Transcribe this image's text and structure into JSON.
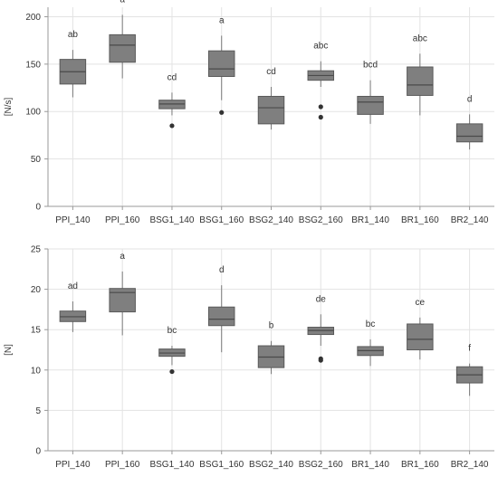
{
  "colors": {
    "box_fill": "#7f7f7f",
    "box_stroke": "#5a5a5a",
    "median": "#4a4a4a",
    "whisker": "#7a7a7a",
    "outlier": "#333333",
    "grid": "#e3e3e3",
    "axis": "#9a9a9a",
    "text": "#333333"
  },
  "chart_data": [
    {
      "type": "box",
      "ylabel": "[N/s]",
      "ylim": [
        0,
        210
      ],
      "yticks": [
        0,
        50,
        100,
        150,
        200
      ],
      "grid": true,
      "categories": [
        "PPI_140",
        "PPI_160",
        "BSG1_140",
        "BSG1_160",
        "BSG2_140",
        "BSG2_160",
        "BR1_140",
        "BR1_160",
        "BR2_140"
      ],
      "boxes": [
        {
          "min": 115,
          "q1": 129,
          "median": 142,
          "q3": 155,
          "max": 165,
          "outliers": [],
          "letters": "ab"
        },
        {
          "min": 135,
          "q1": 152,
          "median": 170,
          "q3": 181,
          "max": 202,
          "outliers": [],
          "letters": "a"
        },
        {
          "min": 96,
          "q1": 103,
          "median": 108,
          "q3": 112,
          "max": 120,
          "outliers": [
            85
          ],
          "letters": "cd"
        },
        {
          "min": 112,
          "q1": 137,
          "median": 145,
          "q3": 164,
          "max": 180,
          "outliers": [
            99
          ],
          "letters": "a"
        },
        {
          "min": 81,
          "q1": 87,
          "median": 104,
          "q3": 116,
          "max": 126,
          "outliers": [],
          "letters": "cd"
        },
        {
          "min": 126,
          "q1": 133,
          "median": 138,
          "q3": 143,
          "max": 153,
          "outliers": [
            105,
            94
          ],
          "letters": "abc"
        },
        {
          "min": 87,
          "q1": 97,
          "median": 110,
          "q3": 116,
          "max": 133,
          "outliers": [],
          "letters": "bcd"
        },
        {
          "min": 96,
          "q1": 117,
          "median": 128,
          "q3": 147,
          "max": 161,
          "outliers": [],
          "letters": "abc"
        },
        {
          "min": 60,
          "q1": 68,
          "median": 74,
          "q3": 87,
          "max": 97,
          "outliers": [],
          "letters": "d"
        }
      ]
    },
    {
      "type": "box",
      "ylabel": "[N]",
      "ylim": [
        0,
        25
      ],
      "yticks": [
        0,
        5,
        10,
        15,
        20,
        25
      ],
      "grid": true,
      "categories": [
        "PPI_140",
        "PPI_160",
        "BSG1_140",
        "BSG1_160",
        "BSG2_140",
        "BSG2_160",
        "BR1_140",
        "BR1_160",
        "BR2_140"
      ],
      "boxes": [
        {
          "min": 14.7,
          "q1": 16.0,
          "median": 16.6,
          "q3": 17.3,
          "max": 18.5,
          "outliers": [],
          "letters": "ad"
        },
        {
          "min": 14.3,
          "q1": 17.2,
          "median": 19.6,
          "q3": 20.1,
          "max": 22.2,
          "outliers": [],
          "letters": "a"
        },
        {
          "min": 10.6,
          "q1": 11.7,
          "median": 12.1,
          "q3": 12.6,
          "max": 13.0,
          "outliers": [
            9.8
          ],
          "letters": "bc"
        },
        {
          "min": 12.2,
          "q1": 15.5,
          "median": 16.3,
          "q3": 17.8,
          "max": 20.5,
          "outliers": [],
          "letters": "d"
        },
        {
          "min": 9.5,
          "q1": 10.3,
          "median": 11.6,
          "q3": 13.0,
          "max": 13.6,
          "outliers": [],
          "letters": "b"
        },
        {
          "min": 13.0,
          "q1": 14.4,
          "median": 14.9,
          "q3": 15.3,
          "max": 16.9,
          "outliers": [
            11.4,
            11.2
          ],
          "letters": "de"
        },
        {
          "min": 10.5,
          "q1": 11.8,
          "median": 12.4,
          "q3": 12.9,
          "max": 13.8,
          "outliers": [],
          "letters": "bc"
        },
        {
          "min": 11.3,
          "q1": 12.5,
          "median": 13.8,
          "q3": 15.7,
          "max": 16.5,
          "outliers": [],
          "letters": "ce"
        },
        {
          "min": 6.8,
          "q1": 8.4,
          "median": 9.4,
          "q3": 10.4,
          "max": 10.8,
          "outliers": [],
          "letters": "f"
        }
      ]
    }
  ]
}
